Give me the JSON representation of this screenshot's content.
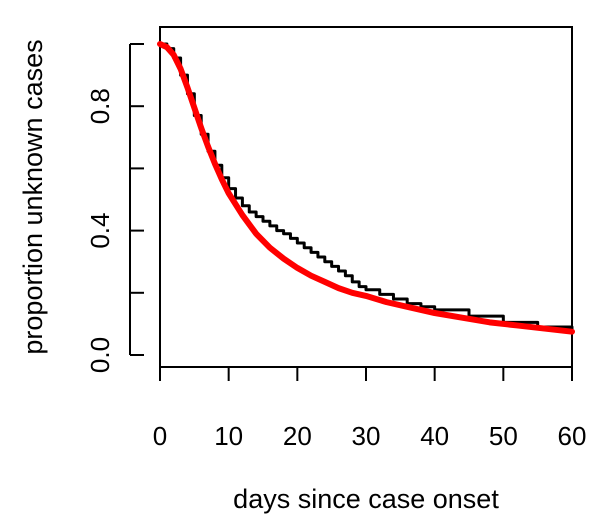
{
  "chart_data": {
    "type": "line",
    "title": "",
    "xlabel": "days since case onset",
    "ylabel": "proportion unknown cases",
    "xlim": [
      0,
      60
    ],
    "ylim": [
      0,
      1
    ],
    "x_ticks": [
      0,
      10,
      20,
      30,
      40,
      50,
      60
    ],
    "x_tick_labels": [
      "0",
      "10",
      "20",
      "30",
      "40",
      "50",
      "60"
    ],
    "y_ticks": [
      0.0,
      0.2,
      0.4,
      0.6,
      0.8,
      1.0
    ],
    "y_tick_labels": [
      "0.0",
      "",
      "0.4",
      "",
      "0.8",
      ""
    ],
    "grid": false,
    "legend": "none",
    "series": [
      {
        "style": "step",
        "color": "#000000",
        "x": [
          0,
          1,
          2,
          3,
          4,
          5,
          6,
          7,
          8,
          9,
          10,
          11,
          12,
          13,
          14,
          15,
          16,
          17,
          18,
          19,
          20,
          21,
          22,
          23,
          24,
          25,
          26,
          27,
          28,
          29,
          30,
          32,
          34,
          36,
          38,
          40,
          45,
          50,
          55,
          60
        ],
        "y": [
          1.0,
          0.985,
          0.955,
          0.9,
          0.84,
          0.77,
          0.71,
          0.655,
          0.61,
          0.57,
          0.535,
          0.505,
          0.48,
          0.46,
          0.445,
          0.43,
          0.415,
          0.4,
          0.39,
          0.375,
          0.36,
          0.345,
          0.33,
          0.315,
          0.3,
          0.285,
          0.27,
          0.255,
          0.235,
          0.22,
          0.21,
          0.195,
          0.18,
          0.165,
          0.155,
          0.145,
          0.125,
          0.105,
          0.09,
          0.08
        ]
      },
      {
        "style": "line",
        "color": "#ff0000",
        "x": [
          0,
          1,
          2,
          3,
          4,
          5,
          6,
          7,
          8,
          9,
          10,
          12,
          14,
          16,
          18,
          20,
          22,
          24,
          26,
          28,
          30,
          33,
          36,
          40,
          44,
          48,
          52,
          56,
          60
        ],
        "y": [
          1.0,
          0.99,
          0.965,
          0.92,
          0.86,
          0.795,
          0.73,
          0.67,
          0.615,
          0.565,
          0.52,
          0.45,
          0.39,
          0.345,
          0.31,
          0.28,
          0.255,
          0.235,
          0.215,
          0.2,
          0.19,
          0.17,
          0.155,
          0.135,
          0.12,
          0.105,
          0.095,
          0.085,
          0.075
        ]
      }
    ]
  }
}
